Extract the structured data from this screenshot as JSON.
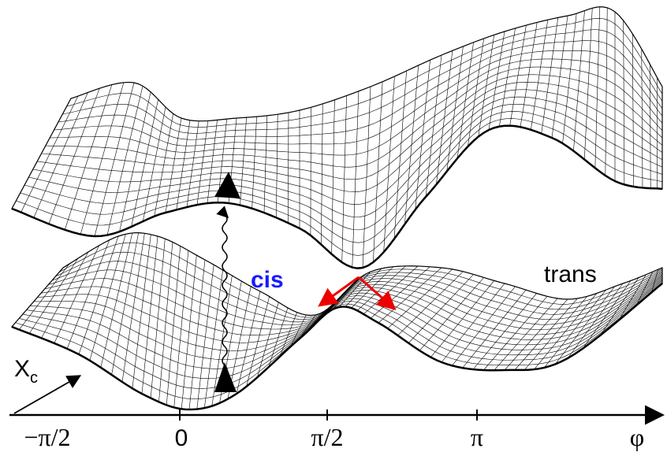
{
  "labels": {
    "cis": "cis",
    "trans": "trans",
    "coordinate": "X",
    "coordinate_subscript": "c"
  },
  "axis": {
    "ticks": [
      "−π/2",
      "0",
      "π/2",
      "π"
    ],
    "label": "φ"
  }
}
